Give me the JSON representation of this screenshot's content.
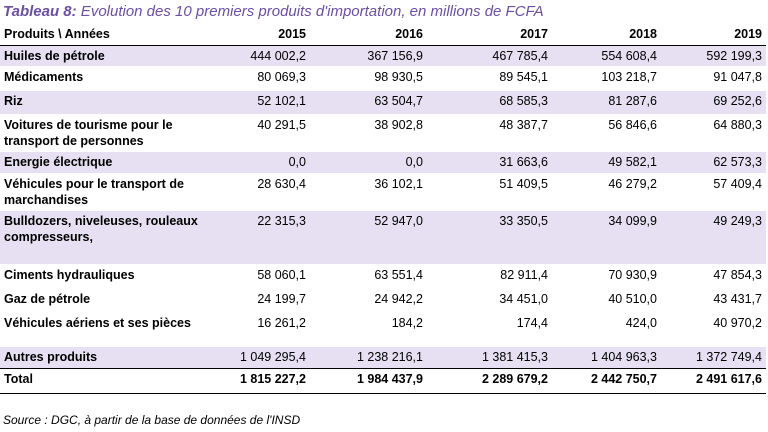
{
  "caption": {
    "label": "Tableau 8:",
    "text": " Evolution des 10 premiers produits d'importation, en millions de FCFA"
  },
  "table": {
    "headers": [
      "Produits \\ Années",
      "2015",
      "2016",
      "2017",
      "2018",
      "2019"
    ],
    "rows": [
      {
        "name": "Huiles de pétrole",
        "values": [
          "444 002,2",
          "367 156,9",
          "467 785,4",
          "554 608,4",
          "592 199,3"
        ]
      },
      {
        "name": "Médicaments",
        "values": [
          "80 069,3",
          "98 930,5",
          "89 545,1",
          "103 218,7",
          "91 047,8"
        ]
      },
      {
        "name": "Riz",
        "values": [
          "52 102,1",
          "63 504,7",
          "68 585,3",
          "81 287,6",
          "69 252,6"
        ]
      },
      {
        "name": "Voitures de tourisme pour le transport de personnes",
        "values": [
          "40 291,5",
          "38 902,8",
          "48 387,7",
          "56 846,6",
          "64 880,3"
        ]
      },
      {
        "name": "Energie électrique",
        "values": [
          "0,0",
          "0,0",
          "31 663,6",
          "49 582,1",
          "62 573,3"
        ]
      },
      {
        "name": "Véhicules pour le transport de marchandises",
        "values": [
          "28 630,4",
          "36 102,1",
          "51 409,5",
          "46 279,2",
          "57 409,4"
        ]
      },
      {
        "name": "Bulldozers, niveleuses, rouleaux compresseurs,",
        "values": [
          "22 315,3",
          "52 947,0",
          "33 350,5",
          "34 099,9",
          "49 249,3"
        ]
      },
      {
        "name": "Ciments hydrauliques",
        "values": [
          "58 060,1",
          "63 551,4",
          "82 911,4",
          "70 930,9",
          "47 854,3"
        ]
      },
      {
        "name": "Gaz de pétrole",
        "values": [
          "24 199,7",
          "24 942,2",
          "34 451,0",
          "40 510,0",
          "43 431,7"
        ]
      },
      {
        "name": "Véhicules aériens et ses pièces",
        "values": [
          "16 261,2",
          "184,2",
          "174,4",
          "424,0",
          "40 970,2"
        ]
      },
      {
        "name": "Autres produits",
        "values": [
          "1 049 295,4",
          "1 238 216,1",
          "1 381 415,3",
          "1 404 963,3",
          "1 372 749,4"
        ]
      }
    ],
    "total": {
      "name": "Total",
      "values": [
        "1 815 227,2",
        "1 984 437,9",
        "2 289 679,2",
        "2 442 750,7",
        "2 491 617,6"
      ]
    }
  },
  "source": "Source : DGC, à partir de la base de données de l'INSD",
  "colors": {
    "caption": "#6b4fa0",
    "row_shade": "#e6e0f2"
  }
}
